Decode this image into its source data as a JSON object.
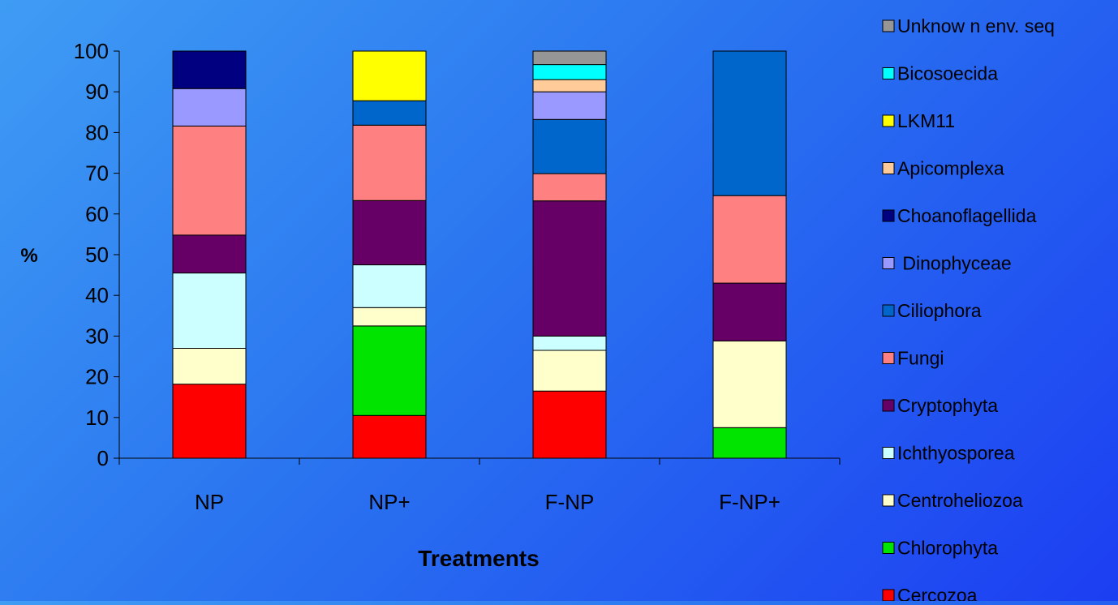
{
  "chart_data": {
    "type": "bar",
    "stacked": true,
    "categories": [
      "NP",
      "NP+",
      "F-NP",
      "F-NP+"
    ],
    "xlabel": "Treatments",
    "ylabel": "%",
    "ylim": [
      0,
      100
    ],
    "yticks": [
      0,
      10,
      20,
      30,
      40,
      50,
      60,
      70,
      80,
      90,
      100
    ],
    "grid": false,
    "legend_position": "right",
    "series": [
      {
        "name": "Cercozoa",
        "color": "#ff0000",
        "values": [
          18.2,
          10.5,
          16.5,
          0
        ]
      },
      {
        "name": "Chlorophyta",
        "color": "#00e400",
        "values": [
          0,
          22.0,
          0,
          7.5
        ]
      },
      {
        "name": "Centroheliozoa",
        "color": "#ffffcc",
        "values": [
          8.8,
          4.5,
          10.0,
          21.3
        ]
      },
      {
        "name": "Ichthyosporea",
        "color": "#ccffff",
        "values": [
          18.5,
          10.5,
          3.5,
          0
        ]
      },
      {
        "name": "Cryptophyta",
        "color": "#660066",
        "values": [
          9.3,
          15.8,
          33.2,
          14.2
        ]
      },
      {
        "name": "Fungi",
        "color": "#ff8080",
        "values": [
          26.8,
          18.5,
          6.7,
          21.5
        ]
      },
      {
        "name": "Ciliophora",
        "color": "#0066cc",
        "values": [
          0,
          6.0,
          13.3,
          35.5
        ]
      },
      {
        "name": " Dinophyceae",
        "color": "#9999ff",
        "values": [
          9.2,
          0,
          6.8,
          0
        ]
      },
      {
        "name": "Choanoflagellida",
        "color": "#000080",
        "values": [
          9.2,
          0,
          0,
          0
        ]
      },
      {
        "name": "Apicomplexa",
        "color": "#ffcc99",
        "values": [
          0,
          0,
          3.0,
          0
        ]
      },
      {
        "name": "LKM11",
        "color": "#ffff00",
        "values": [
          0,
          12.2,
          0,
          0
        ]
      },
      {
        "name": "Bicosoecida",
        "color": "#00ffff",
        "values": [
          0,
          0,
          3.7,
          0
        ]
      },
      {
        "name": "Unknow n env. seq",
        "color": "#969696",
        "values": [
          0,
          0,
          3.3,
          0
        ]
      }
    ]
  }
}
